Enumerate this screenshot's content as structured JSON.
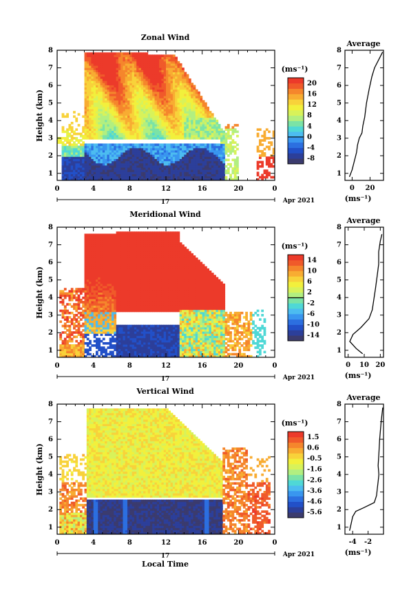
{
  "chart_data": [
    {
      "type": "heatmap",
      "title": "Zonal Wind",
      "ylabel": "Height (km)",
      "xlabel": "",
      "ylim": [
        0.6,
        8
      ],
      "xlim": [
        0,
        24
      ],
      "x_ticks": [
        "0",
        "4",
        "8",
        "12",
        "16",
        "20",
        "0"
      ],
      "y_ticks": [
        "1",
        "2",
        "3",
        "4",
        "5",
        "6",
        "7",
        "8"
      ],
      "day_label": "17",
      "date_label": "Apr 2021",
      "colorbar": {
        "unit": "(ms⁻¹)",
        "ticks": [
          "20",
          "16",
          "12",
          "8",
          "4",
          "0",
          "-4",
          "-8"
        ],
        "range": [
          -10,
          22
        ],
        "zero_line": 0
      },
      "average_profile": {
        "title": "Average",
        "xlabel": "(ms⁻¹)",
        "x_ticks": [
          "0",
          "20"
        ],
        "xlim": [
          -8,
          35
        ],
        "heights": [
          0.8,
          1.2,
          1.8,
          2.2,
          2.6,
          3.0,
          3.3,
          3.7,
          4.2,
          5.0,
          5.8,
          6.5,
          7.0,
          7.5,
          7.9
        ],
        "values": [
          -3,
          0,
          3,
          5,
          6,
          8,
          11,
          12,
          14,
          16,
          19,
          22,
          25,
          30,
          34
        ]
      }
    },
    {
      "type": "heatmap",
      "title": "Meridional Wind",
      "ylabel": "Height (km)",
      "xlabel": "",
      "ylim": [
        0.6,
        8
      ],
      "xlim": [
        0,
        24
      ],
      "x_ticks": [
        "0",
        "4",
        "8",
        "12",
        "16",
        "20",
        "0"
      ],
      "y_ticks": [
        "1",
        "2",
        "3",
        "4",
        "5",
        "6",
        "7",
        "8"
      ],
      "day_label": "17",
      "date_label": "Apr 2021",
      "colorbar": {
        "unit": "(ms⁻¹)",
        "ticks": [
          "14",
          "10",
          "6",
          "2",
          "-2",
          "-6",
          "-10",
          "-14"
        ],
        "range": [
          -16,
          16
        ],
        "zero_line": 0
      },
      "average_profile": {
        "title": "Average",
        "xlabel": "(ms⁻¹)",
        "x_ticks": [
          "0",
          "10",
          "20"
        ],
        "xlim": [
          -2,
          22
        ],
        "heights": [
          0.8,
          1.1,
          1.5,
          1.9,
          2.3,
          2.8,
          3.3,
          3.9,
          4.5,
          5.2,
          5.9,
          6.6,
          7.2,
          7.6
        ],
        "values": [
          9,
          5,
          1,
          3,
          8,
          13,
          15,
          16,
          17,
          18,
          19,
          19,
          20,
          21
        ]
      }
    },
    {
      "type": "heatmap",
      "title": "Vertical Wind",
      "ylabel": "Height (km)",
      "xlabel": "Local Time",
      "ylim": [
        0.6,
        8
      ],
      "xlim": [
        0,
        24
      ],
      "x_ticks": [
        "0",
        "4",
        "8",
        "12",
        "16",
        "20",
        "0"
      ],
      "y_ticks": [
        "1",
        "2",
        "3",
        "4",
        "5",
        "6",
        "7",
        "8"
      ],
      "day_label": "17",
      "date_label": "Apr 2021",
      "colorbar": {
        "unit": "(ms⁻¹)",
        "ticks": [
          "1.5",
          "0.6",
          "-0.5",
          "-1.6",
          "-2.6",
          "-3.6",
          "-4.6",
          "-5.6"
        ],
        "range": [
          -6.1,
          2.0
        ]
      },
      "average_profile": {
        "title": "Average",
        "xlabel": "(ms⁻¹)",
        "x_ticks": [
          "-4",
          "-2"
        ],
        "xlim": [
          -5,
          0
        ],
        "heights": [
          0.8,
          1.2,
          1.6,
          1.9,
          2.1,
          2.4,
          2.8,
          3.2,
          3.6,
          4.0,
          4.5,
          5.2,
          6.0,
          7.0,
          7.8
        ],
        "values": [
          -4.4,
          -4.2,
          -4.0,
          -3.6,
          -2.6,
          -1.2,
          -0.9,
          -0.8,
          -0.7,
          -0.6,
          -0.7,
          -0.6,
          -0.5,
          -0.3,
          -0.1
        ]
      }
    }
  ]
}
